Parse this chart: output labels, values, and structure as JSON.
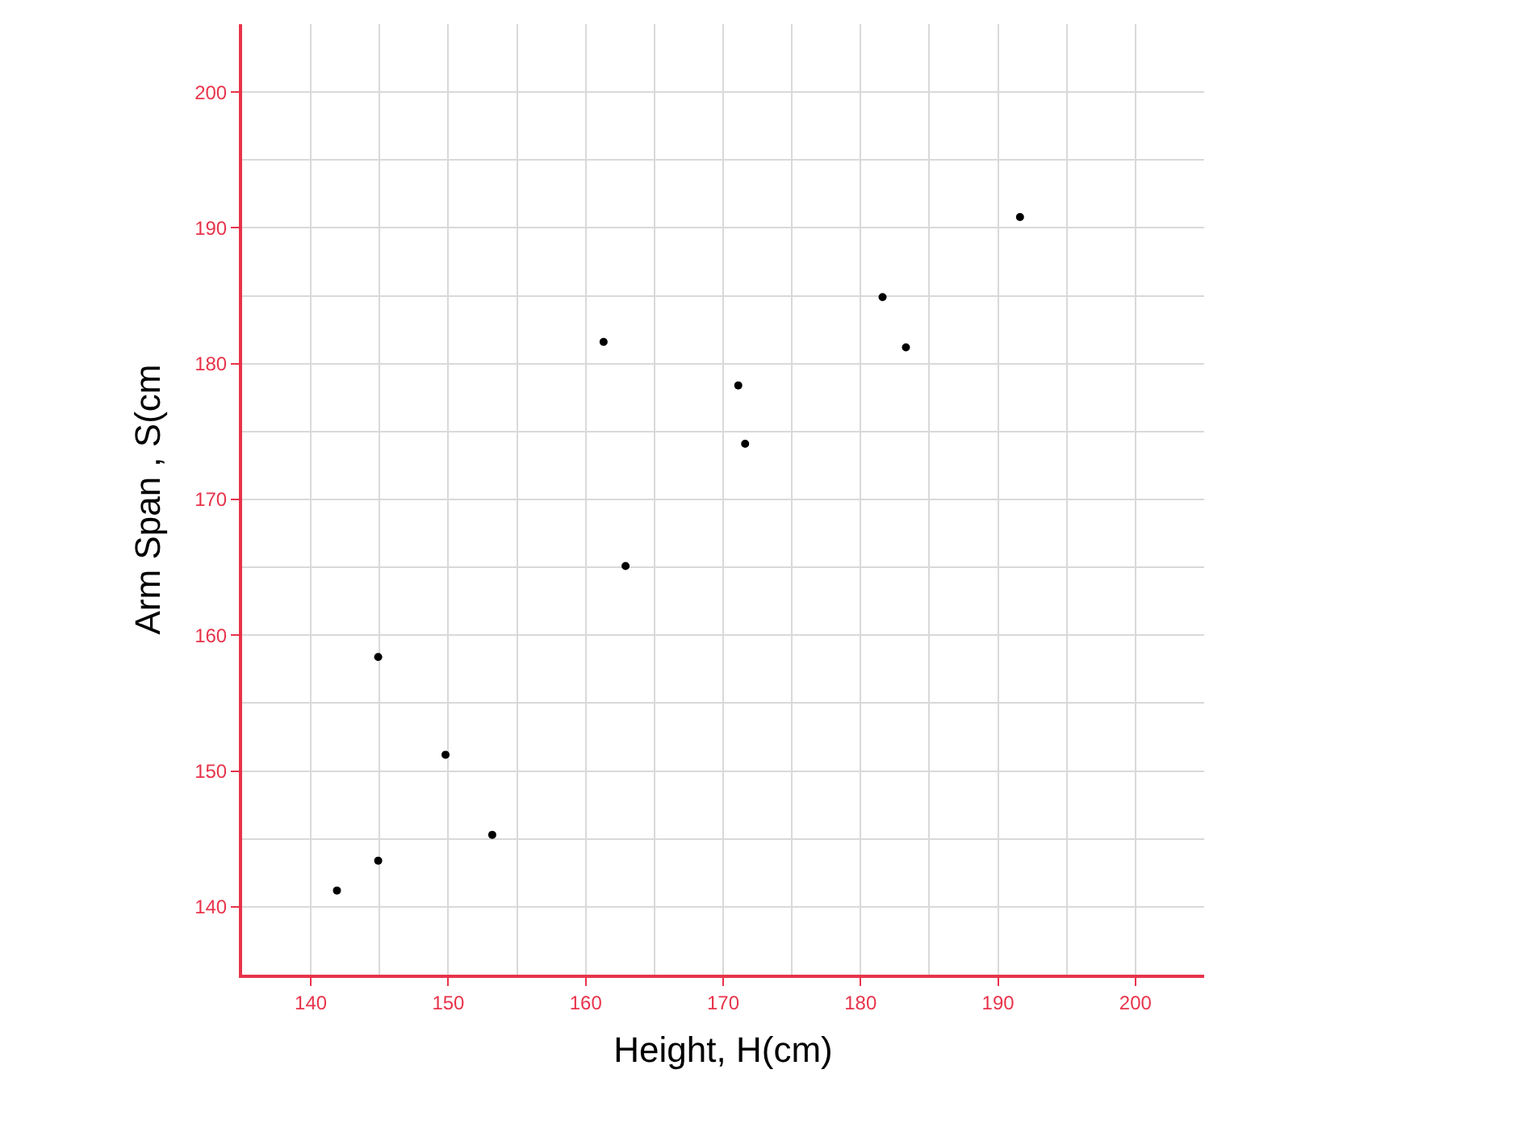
{
  "chart_data": {
    "type": "scatter",
    "xlabel": "Height, H(cm)",
    "ylabel": "Arm Span , S(cm",
    "x": [
      141.9,
      144.9,
      144.9,
      149.8,
      153.2,
      161.3,
      162.9,
      171.1,
      171.6,
      181.6,
      183.3,
      191.6
    ],
    "series": [
      {
        "color": "#000000",
        "values": [
          141.2,
          143.4,
          158.4,
          151.2,
          145.3,
          181.6,
          165.1,
          178.4,
          174.1,
          184.9,
          181.2,
          190.8
        ]
      }
    ],
    "xlim": [
      135,
      205
    ],
    "ylim": [
      135,
      205
    ],
    "xticks": [
      140,
      150,
      160,
      170,
      180,
      190,
      200
    ],
    "yticks": [
      140,
      150,
      160,
      170,
      180,
      190,
      200
    ],
    "grid": true,
    "marker": "circle"
  }
}
